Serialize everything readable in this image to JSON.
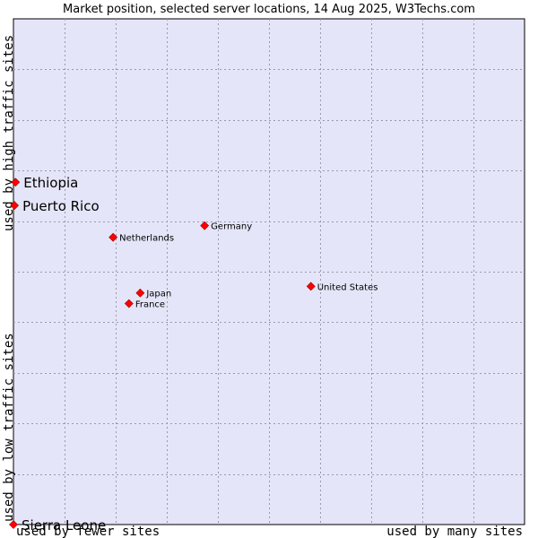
{
  "chart_data": {
    "type": "scatter",
    "title": "Market position, selected server locations, 14 Aug 2025, W3Techs.com",
    "xlabel_left": "used by fewer sites",
    "xlabel_right": "used by many sites",
    "ylabel_bottom": "used by low traffic sites",
    "ylabel_top": "used by high traffic sites",
    "xlim": [
      0,
      100
    ],
    "ylim": [
      0,
      100
    ],
    "grid": true,
    "marker_color": "#ff0000",
    "plot_background": "#e5e5f9",
    "points": [
      {
        "name": "Ethiopia",
        "x": 0.4,
        "y": 67.7,
        "emphasis": true
      },
      {
        "name": "Puerto Rico",
        "x": 0.2,
        "y": 63.1,
        "emphasis": true
      },
      {
        "name": "Germany",
        "x": 37.4,
        "y": 59.1,
        "emphasis": false
      },
      {
        "name": "Netherlands",
        "x": 19.5,
        "y": 56.8,
        "emphasis": false
      },
      {
        "name": "United States",
        "x": 58.2,
        "y": 47.1,
        "emphasis": false
      },
      {
        "name": "Japan",
        "x": 24.8,
        "y": 45.8,
        "emphasis": false
      },
      {
        "name": "France",
        "x": 22.6,
        "y": 43.7,
        "emphasis": false
      },
      {
        "name": "Sierra Leone",
        "x": 0.0,
        "y": 0.0,
        "emphasis": true
      }
    ]
  }
}
